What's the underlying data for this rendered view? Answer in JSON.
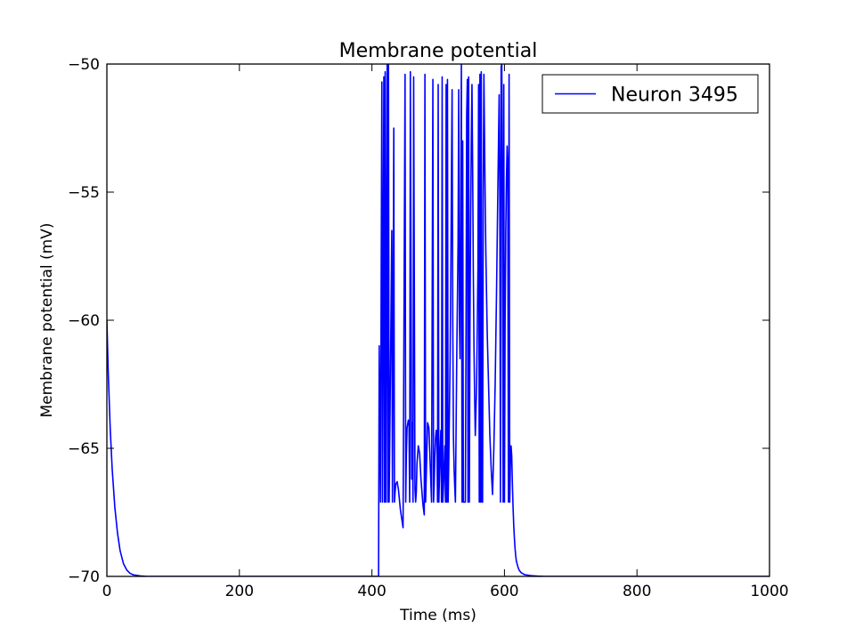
{
  "chart_data": {
    "type": "line",
    "title": "Membrane potential",
    "xlabel": "Time (ms)",
    "ylabel": "Membrane potential (mV)",
    "xlim": [
      0,
      1000
    ],
    "ylim": [
      -70,
      -50
    ],
    "x_ticks": [
      0,
      200,
      400,
      600,
      800,
      1000
    ],
    "y_ticks": [
      -70,
      -65,
      -60,
      -55,
      -50
    ],
    "y_tick_labels": [
      "−70",
      "−65",
      "−60",
      "−55",
      "−50"
    ],
    "grid": false,
    "legend": {
      "position": "top-right",
      "entries": [
        "Neuron 3495"
      ]
    },
    "series": [
      {
        "name": "Neuron 3495",
        "color": "#0000ff",
        "x": [
          0,
          2,
          5,
          8,
          12,
          16,
          20,
          25,
          30,
          35,
          40,
          50,
          60,
          80,
          100,
          200,
          300,
          400,
          410,
          411,
          413,
          414,
          415,
          416,
          418,
          419,
          420,
          421,
          423,
          424,
          425,
          426,
          428,
          430,
          431,
          433,
          434,
          435,
          436,
          438,
          440,
          443,
          447,
          450,
          451,
          452,
          453,
          455,
          456,
          457,
          458,
          460,
          461,
          462,
          463,
          465,
          466,
          467,
          468,
          470,
          472,
          474,
          477,
          479,
          480,
          481,
          482,
          483,
          484,
          486,
          490,
          492,
          493,
          494,
          495,
          496,
          497,
          498,
          499,
          500,
          501,
          503,
          504,
          505,
          506,
          507,
          508,
          510,
          511,
          512,
          513,
          514,
          515,
          516,
          517,
          518,
          519,
          520,
          521,
          522,
          523,
          524,
          525,
          526,
          528,
          530,
          531,
          532,
          533,
          534,
          535,
          536,
          537,
          538,
          539,
          540,
          541,
          542,
          543,
          544,
          545,
          546,
          547,
          548,
          549,
          550,
          551,
          552,
          553,
          554,
          555,
          556,
          558,
          560,
          561,
          562,
          563,
          564,
          565,
          566,
          567,
          568,
          569,
          570,
          571,
          572,
          573,
          574,
          576,
          578,
          580,
          582,
          584,
          586,
          588,
          590,
          592,
          593,
          594,
          595,
          596,
          597,
          598,
          599,
          600,
          601,
          602,
          603,
          604,
          605,
          606,
          607,
          608,
          609,
          610,
          611,
          612,
          613,
          614,
          615,
          616,
          617,
          618,
          620,
          622,
          625,
          630,
          640,
          650,
          660,
          680,
          700,
          800,
          1000
        ],
        "y": [
          -60,
          -62.0,
          -64.2,
          -65.8,
          -67.3,
          -68.3,
          -69.0,
          -69.5,
          -69.75,
          -69.88,
          -69.94,
          -69.98,
          -70,
          -70,
          -70,
          -70,
          -70,
          -70,
          -70,
          -61,
          -67.1,
          -58.0,
          -50.7,
          -67.1,
          -50.5,
          -67.1,
          -50.3,
          -67.1,
          -50,
          -67.1,
          -50,
          -67.1,
          -62.0,
          -56.5,
          -67.1,
          -52.5,
          -67.1,
          -66.7,
          -66.4,
          -66.3,
          -66.6,
          -67.4,
          -68.1,
          -50.4,
          -67.1,
          -65.2,
          -64.2,
          -63.9,
          -64.1,
          -67.1,
          -50.3,
          -66.2,
          -64.0,
          -67.1,
          -50.5,
          -66.6,
          -67.1,
          -66.7,
          -65.6,
          -64.9,
          -65.2,
          -66.2,
          -67.2,
          -67.6,
          -50.4,
          -67.1,
          -66.1,
          -65.0,
          -64.0,
          -64.2,
          -67.1,
          -50.6,
          -67.1,
          -66.4,
          -65.3,
          -64.6,
          -64.3,
          -64.4,
          -67.1,
          -50.8,
          -67.1,
          -65.0,
          -64.3,
          -67.1,
          -50.5,
          -67.1,
          -66.5,
          -64.9,
          -67.1,
          -50.8,
          -67.1,
          -50.6,
          -67.1,
          -65.5,
          -63.5,
          -61.5,
          -58.5,
          -54.5,
          -51.0,
          -60.0,
          -64.5,
          -65.8,
          -66.5,
          -67.1,
          -61.5,
          -57.0,
          -51.0,
          -60.0,
          -61.5,
          -56.0,
          -50.0,
          -67.1,
          -53.0,
          -67.1,
          -67.1,
          -67.1,
          -67.1,
          -60.5,
          -52.0,
          -50.6,
          -67.1,
          -50.5,
          -67.1,
          -60.0,
          -56.0,
          -53.0,
          -50.8,
          -54.0,
          -58.0,
          -61.0,
          -63.0,
          -64.5,
          -62.5,
          -58.0,
          -50.8,
          -67.1,
          -50.4,
          -67.1,
          -50.3,
          -67.1,
          -67.1,
          -55.0,
          -50.4,
          -53.0,
          -55.5,
          -57.5,
          -59.0,
          -60.5,
          -62.5,
          -64.5,
          -65.8,
          -66.8,
          -65.0,
          -62.5,
          -59.0,
          -55.0,
          -51.2,
          -55.5,
          -67.1,
          -50.1,
          -50.0,
          -55.7,
          -67.1,
          -50.8,
          -67.1,
          -60.0,
          -56.5,
          -54.5,
          -53.2,
          -54.0,
          -67.1,
          -50.4,
          -67.1,
          -65.6,
          -64.9,
          -65.3,
          -66.4,
          -67.3,
          -68.0,
          -68.5,
          -68.9,
          -69.2,
          -69.4,
          -69.6,
          -69.75,
          -69.85,
          -69.93,
          -69.97,
          -69.99,
          -70,
          -70,
          -70,
          -70,
          -70
        ]
      }
    ]
  }
}
